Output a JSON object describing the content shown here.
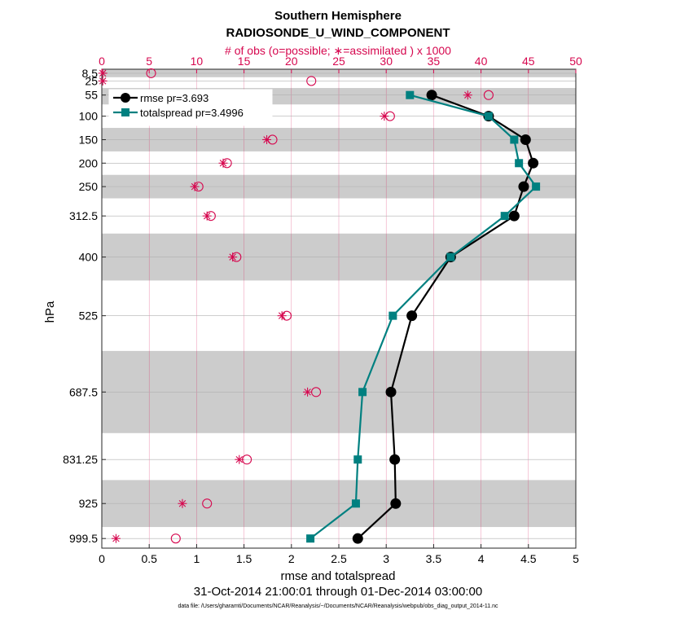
{
  "chart_data": {
    "type": "line",
    "title": "Southern Hemisphere",
    "subtitle": "RADIOSONDE_U_WIND_COMPONENT",
    "top_axis_label": "# of obs (o=possible; ∗=assimilated ) x 1000",
    "xlabel": "rmse and totalspread",
    "ylabel": "hPa",
    "date_range": "31-Oct-2014 21:00:01 through 01-Dec-2014 03:00:00",
    "footnote": "data file: /Users/gharamti/Documents/NCAR/Reanalysis/~/Documents/NCAR/Reanalysis/webpub/obs_diag_output_2014-11.nc",
    "xlim": [
      0,
      5
    ],
    "xticks": [
      "0",
      "0.5",
      "1",
      "1.5",
      "2",
      "2.5",
      "3",
      "3.5",
      "4",
      "4.5",
      "5"
    ],
    "top_xlim": [
      0,
      50
    ],
    "top_xticks": [
      "0",
      "5",
      "10",
      "15",
      "20",
      "25",
      "30",
      "35",
      "40",
      "45",
      "50"
    ],
    "y_levels": [
      8.5,
      25,
      55,
      100,
      150,
      200,
      250,
      312.5,
      400,
      525,
      687.5,
      831.25,
      925,
      999.5
    ],
    "y_tick_labels": [
      "8.5",
      "25",
      "55",
      "100",
      "150",
      "200",
      "250",
      "312.5",
      "400",
      "525",
      "687.5",
      "831.25",
      "925",
      "999.5"
    ],
    "shaded_bands_hpa": [
      [
        0,
        17
      ],
      [
        40,
        75
      ],
      [
        125,
        175
      ],
      [
        225,
        275
      ],
      [
        350,
        450
      ],
      [
        600,
        775
      ],
      [
        875,
        975
      ]
    ],
    "legend": {
      "position": "top-left",
      "entries": [
        "rmse pr=3.693",
        "totalspread pr=3.4996"
      ]
    },
    "series": [
      {
        "name": "rmse pr=3.693",
        "color": "#000000",
        "marker": "circle",
        "levels": [
          55,
          100,
          150,
          200,
          250,
          312.5,
          400,
          525,
          687.5,
          831.25,
          925,
          999.5
        ],
        "values": [
          3.48,
          4.08,
          4.47,
          4.55,
          4.45,
          4.35,
          3.68,
          3.27,
          3.05,
          3.09,
          3.1,
          2.7
        ]
      },
      {
        "name": "totalspread pr=3.4996",
        "color": "#008080",
        "marker": "square",
        "levels": [
          55,
          100,
          150,
          200,
          250,
          312.5,
          400,
          525,
          687.5,
          831.25,
          925,
          999.5
        ],
        "values": [
          3.25,
          4.08,
          4.35,
          4.4,
          4.58,
          4.25,
          3.68,
          3.07,
          2.75,
          2.7,
          2.68,
          2.2
        ]
      }
    ],
    "obs_possible": {
      "levels": [
        8.5,
        25,
        55,
        100,
        150,
        200,
        250,
        312.5,
        400,
        525,
        687.5,
        831.25,
        925,
        999.5
      ],
      "values": [
        5.2,
        22.1,
        40.8,
        30.4,
        18.0,
        13.2,
        10.2,
        11.5,
        14.2,
        19.5,
        22.6,
        15.3,
        11.1,
        7.8
      ]
    },
    "obs_assimilated": {
      "levels": [
        8.5,
        25,
        55,
        100,
        150,
        200,
        250,
        312.5,
        400,
        525,
        687.5,
        831.25,
        925,
        999.5
      ],
      "values": [
        0.1,
        0.1,
        38.6,
        29.8,
        17.4,
        12.8,
        9.8,
        11.1,
        13.8,
        19.0,
        21.7,
        14.5,
        8.5,
        1.5
      ]
    }
  }
}
